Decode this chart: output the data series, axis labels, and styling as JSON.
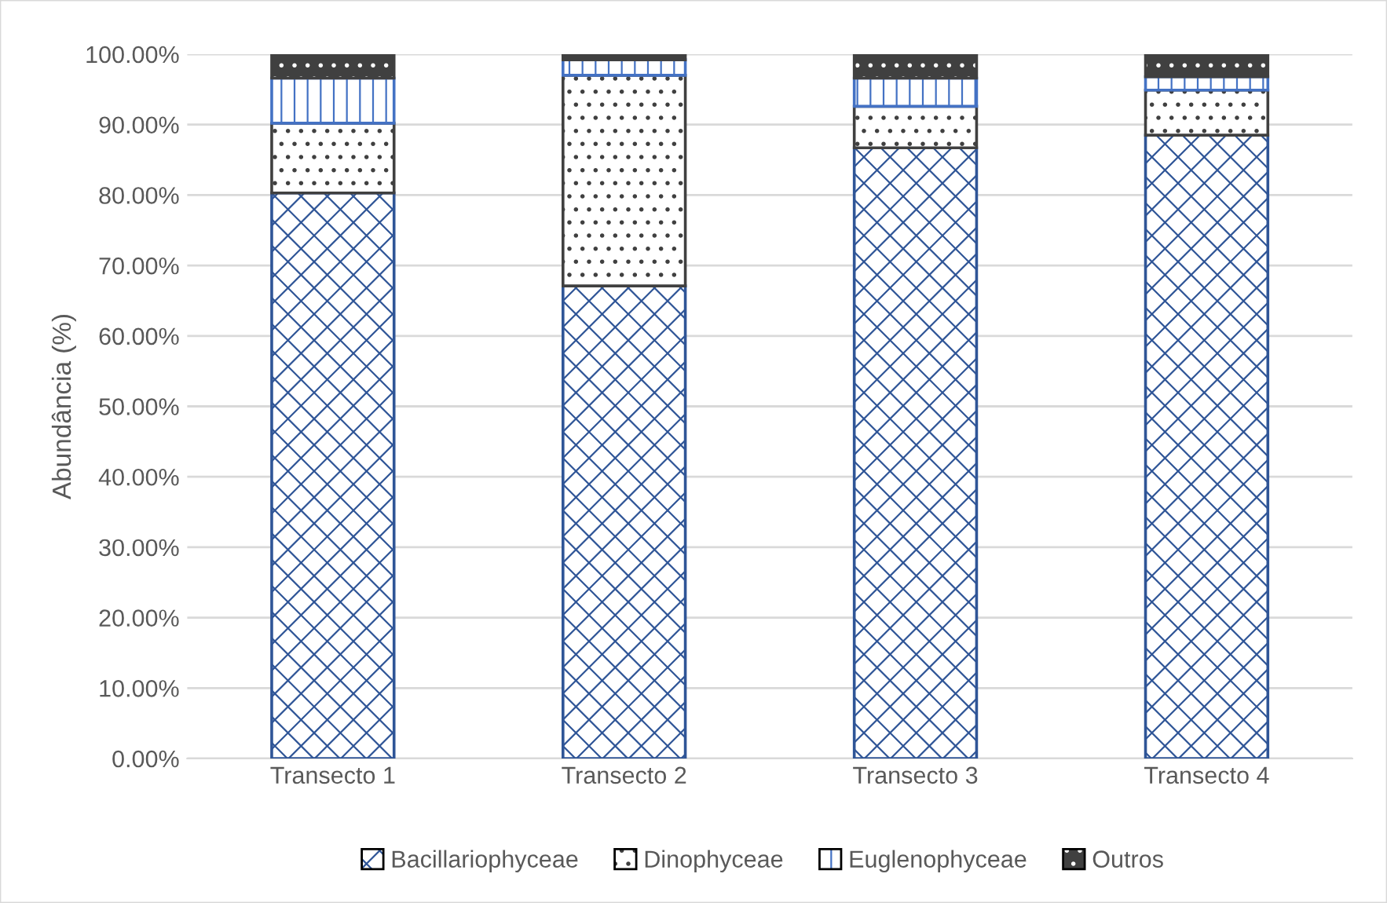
{
  "chart_data": {
    "type": "bar",
    "stacked": true,
    "ylabel": "Abundância (%)",
    "categories": [
      "Transecto 1",
      "Transecto 2",
      "Transecto 3",
      "Transecto 4"
    ],
    "series": [
      {
        "name": "Bacillariophyceae",
        "color": "#2f5597",
        "values": [
          80.3,
          67.1,
          86.7,
          88.5
        ]
      },
      {
        "name": "Dinophyceae",
        "color": "#404040",
        "values": [
          9.9,
          29.9,
          5.9,
          6.4
        ]
      },
      {
        "name": "Euglenophyceae",
        "color": "#4472c4",
        "values": [
          6.4,
          2.2,
          4.0,
          1.9
        ]
      },
      {
        "name": "Outros",
        "color": "#404040",
        "values": [
          3.4,
          0.8,
          3.4,
          3.2
        ]
      }
    ],
    "ylim": [
      0,
      100
    ],
    "yticks": [
      {
        "value": 0,
        "label": "0.00%"
      },
      {
        "value": 10,
        "label": "10.00%"
      },
      {
        "value": 20,
        "label": "20.00%"
      },
      {
        "value": 30,
        "label": "30.00%"
      },
      {
        "value": 40,
        "label": "40.00%"
      },
      {
        "value": 50,
        "label": "50.00%"
      },
      {
        "value": 60,
        "label": "60.00%"
      },
      {
        "value": 70,
        "label": "70.00%"
      },
      {
        "value": 80,
        "label": "80.00%"
      },
      {
        "value": 90,
        "label": "90.00%"
      },
      {
        "value": 100,
        "label": "100.00%"
      }
    ],
    "grid": "y",
    "legend": "bottom"
  }
}
